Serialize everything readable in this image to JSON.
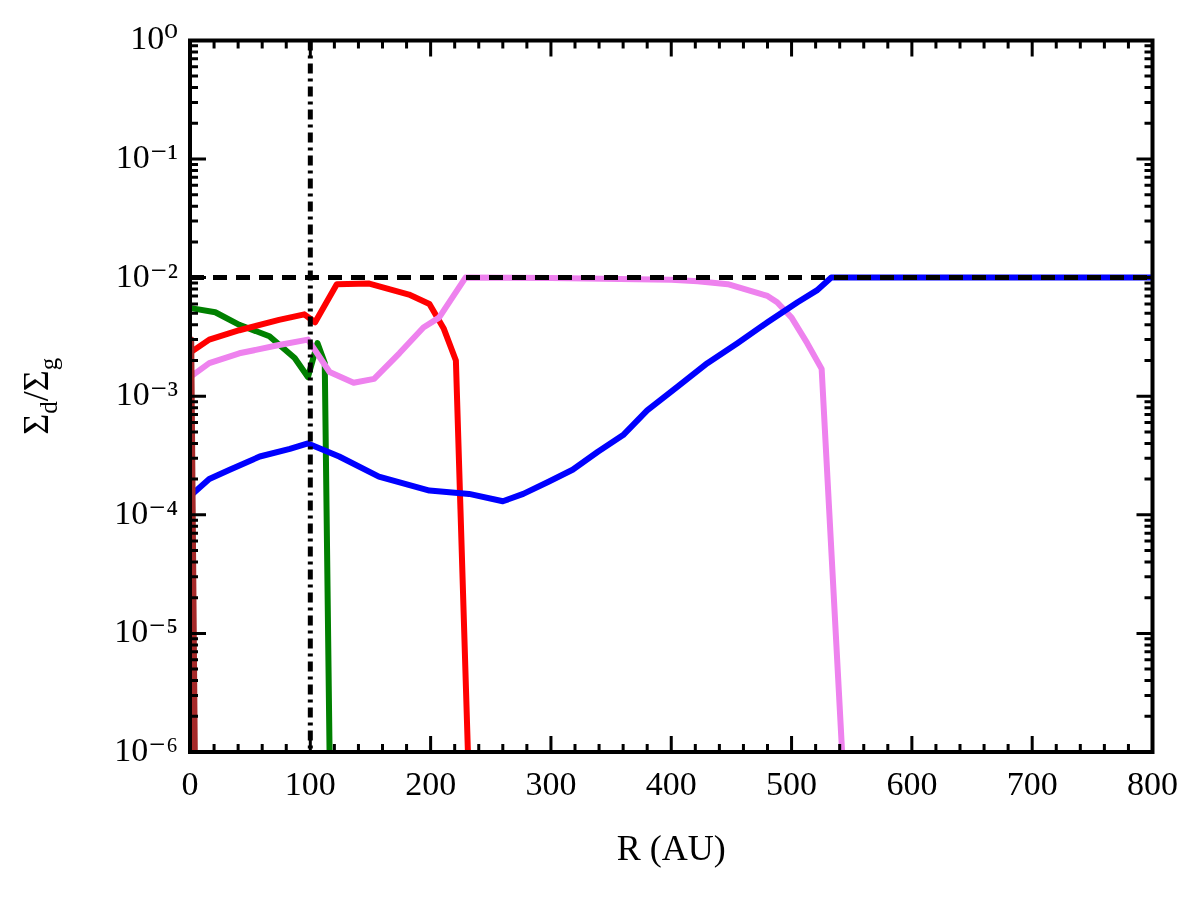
{
  "chart_data": {
    "type": "line",
    "xlabel": "R (AU)",
    "ylabel": "Σ$_{d}$/Σ$_{g}$",
    "log": "y",
    "grid": false,
    "legend": false,
    "marker": "none",
    "line_style": "solid",
    "xlim": [
      0,
      800
    ],
    "xticks": [
      0,
      100,
      200,
      300,
      400,
      500,
      600,
      700,
      800
    ],
    "ylim": [
      1e-06,
      1
    ],
    "yticks": [
      {
        "value": 1e-06,
        "label": "10⁻⁶"
      },
      {
        "value": 1e-05,
        "label": "10⁻⁵"
      },
      {
        "value": 0.0001,
        "label": "10⁻⁴"
      },
      {
        "value": 0.001,
        "label": "10⁻³"
      },
      {
        "value": 0.01,
        "label": "10⁻²"
      },
      {
        "value": 0.1,
        "label": "10⁻¹"
      },
      {
        "value": 1,
        "label": "10⁰"
      }
    ],
    "ref_lines": [
      {
        "axis": "y",
        "value": 0.01,
        "color": "#000000",
        "line_style": "dashed"
      },
      {
        "axis": "x",
        "value": 100,
        "color": "#000000",
        "line_style": "dotted"
      }
    ],
    "series": [
      {
        "color": "#a52a2a",
        "x": [
          1,
          4
        ],
        "values": [
          0.003,
          1e-06
        ]
      },
      {
        "color": "#0000ff",
        "x": [
          2,
          16,
          33,
          58,
          83,
          98,
          124,
          157,
          199,
          232,
          260,
          277,
          298,
          318,
          339,
          360,
          380,
          405,
          430,
          455,
          480,
          505,
          521,
          533,
          800
        ],
        "values": [
          0.00015,
          0.0002,
          0.00024,
          0.00031,
          0.00036,
          0.0004,
          0.00031,
          0.00021,
          0.00016,
          0.00015,
          0.00013,
          0.00015,
          0.00019,
          0.00024,
          0.00034,
          0.00047,
          0.00076,
          0.0012,
          0.0019,
          0.0028,
          0.0042,
          0.0062,
          0.0078,
          0.01,
          0.01
        ]
      },
      {
        "color": "#ee82ee",
        "x": [
          2,
          16,
          41,
          74,
          98,
          116,
          136,
          153,
          174,
          194,
          207,
          229,
          300,
          400,
          422,
          447,
          480,
          488,
          500,
          513,
          525,
          542
        ],
        "values": [
          0.0015,
          0.0019,
          0.0023,
          0.0027,
          0.003,
          0.0016,
          0.0013,
          0.0014,
          0.0023,
          0.0038,
          0.0046,
          0.01,
          0.0099,
          0.0096,
          0.0093,
          0.0088,
          0.007,
          0.0062,
          0.0046,
          0.0028,
          0.0017,
          1e-06
        ]
      },
      {
        "color": "#ff0000",
        "x": [
          2,
          16,
          41,
          74,
          95,
          104,
          122,
          149,
          182,
          199,
          211,
          221,
          231
        ],
        "values": [
          0.0024,
          0.003,
          0.0036,
          0.0044,
          0.0049,
          0.0042,
          0.0088,
          0.0089,
          0.0072,
          0.006,
          0.0037,
          0.002,
          1e-06
        ]
      },
      {
        "color": "#008000",
        "x": [
          2,
          21,
          41,
          66,
          87,
          98,
          106,
          112,
          116
        ],
        "values": [
          0.0055,
          0.0051,
          0.004,
          0.0032,
          0.0021,
          0.00145,
          0.0028,
          0.0019,
          1e-06
        ]
      }
    ]
  }
}
